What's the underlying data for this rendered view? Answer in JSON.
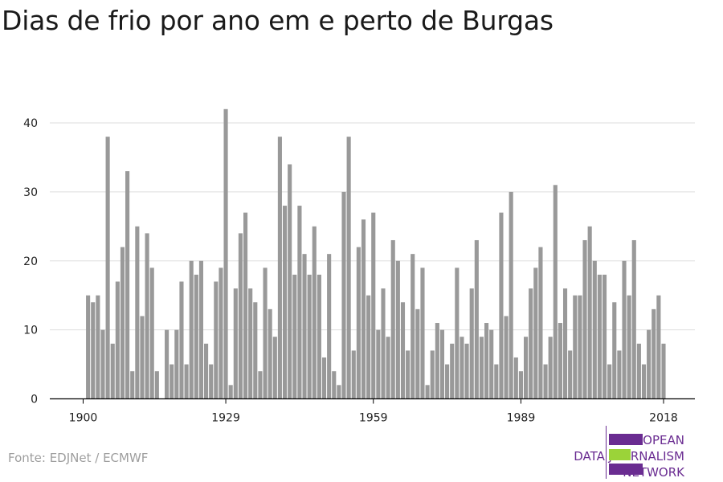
{
  "title": "Dias de frio por ano em e perto de Burgas",
  "source": "Fonte: EDJNet / ECMWF",
  "logo": {
    "lines": [
      "EUROPEAN",
      "DATA JOURNALISM",
      "NETWORK"
    ],
    "colors": {
      "text": "#6a2c91",
      "purple": "#6a2c91",
      "green": "#9bd339"
    }
  },
  "colors": {
    "bar": "#999999",
    "grid": "#dddddd",
    "axis": "#000000",
    "tick_text": "#222222"
  },
  "chart_data": {
    "type": "bar",
    "title": "Dias de frio por ano em e perto de Burgas",
    "xlabel": "",
    "ylabel": "",
    "x_start": 1900,
    "x_end": 2018,
    "x_ticks": [
      1900,
      1929,
      1959,
      1989,
      2018
    ],
    "y_ticks": [
      0,
      10,
      20,
      30,
      40
    ],
    "ylim": [
      0,
      42
    ],
    "grid": true,
    "values": [
      0,
      15,
      14,
      15,
      10,
      38,
      8,
      17,
      22,
      33,
      4,
      25,
      12,
      24,
      19,
      4,
      0,
      10,
      5,
      10,
      17,
      5,
      20,
      18,
      20,
      8,
      5,
      17,
      19,
      42,
      2,
      16,
      24,
      27,
      16,
      14,
      4,
      19,
      13,
      9,
      38,
      28,
      34,
      18,
      28,
      21,
      18,
      25,
      18,
      6,
      21,
      4,
      2,
      30,
      38,
      7,
      22,
      26,
      15,
      27,
      10,
      16,
      9,
      23,
      20,
      14,
      7,
      21,
      13,
      19,
      2,
      7,
      11,
      10,
      5,
      8,
      19,
      9,
      8,
      16,
      23,
      9,
      11,
      10,
      5,
      27,
      12,
      30,
      6,
      4,
      9,
      16,
      19,
      22,
      5,
      9,
      31,
      11,
      16,
      7,
      15,
      15,
      23,
      25,
      20,
      18,
      18,
      5,
      14,
      7,
      20,
      15,
      23,
      8,
      5,
      10,
      13,
      15,
      8
    ]
  }
}
